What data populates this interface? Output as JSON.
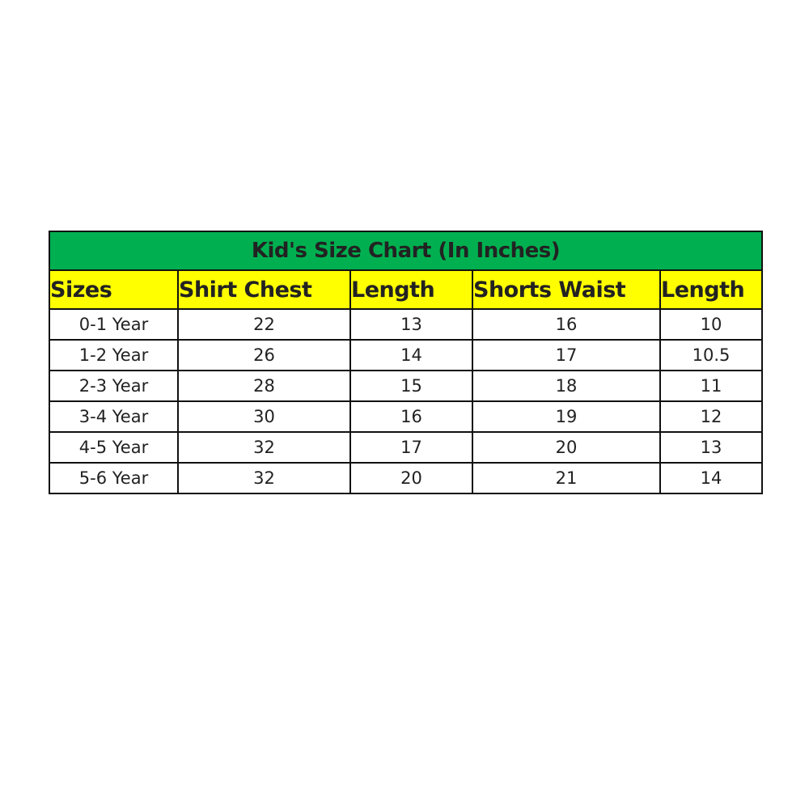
{
  "title": "Kid's Size Chart (In Inches)",
  "colors": {
    "title_bg": "#00b050",
    "header_bg": "#ffff00"
  },
  "headers": [
    "Sizes",
    "Shirt Chest",
    "Length",
    "Shorts Waist",
    "Length"
  ],
  "rows": [
    [
      "0-1 Year",
      "22",
      "13",
      "16",
      "10"
    ],
    [
      "1-2 Year",
      "26",
      "14",
      "17",
      "10.5"
    ],
    [
      "2-3 Year",
      "28",
      "15",
      "18",
      "11"
    ],
    [
      "3-4 Year",
      "30",
      "16",
      "19",
      "12"
    ],
    [
      "4-5 Year",
      "32",
      "17",
      "20",
      "13"
    ],
    [
      "5-6 Year",
      "32",
      "20",
      "21",
      "14"
    ]
  ]
}
